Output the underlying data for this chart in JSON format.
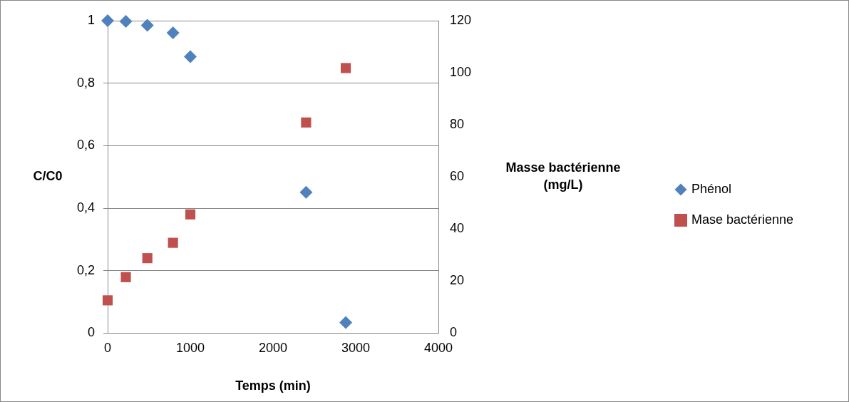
{
  "chart_data": {
    "type": "scatter",
    "xlabel": "Temps (min)",
    "ylabel": "C/C0",
    "y2label": "Masse bactérienne (mg/L)",
    "xlim": [
      0,
      4000
    ],
    "xticks": [
      0,
      1000,
      2000,
      3000,
      4000
    ],
    "ylim": [
      0,
      1
    ],
    "yticks": [
      0,
      {
        "value": 0.2,
        "label": "0,2"
      },
      {
        "value": 0.4,
        "label": "0,4"
      },
      {
        "value": 0.6,
        "label": "0,6"
      },
      {
        "value": 0.8,
        "label": "0,8"
      },
      1
    ],
    "y2lim": [
      0,
      120
    ],
    "y2ticks": [
      0,
      20,
      40,
      60,
      80,
      100,
      120
    ],
    "grid": "y",
    "legend": "right",
    "series": [
      {
        "name": "Phénol",
        "color": "#4f81bd",
        "marker": "diamond",
        "x": [
          0,
          220,
          480,
          790,
          1000,
          2400,
          2880
        ],
        "values": [
          1,
          0.998,
          0.985,
          0.961,
          0.885,
          0.451,
          0.034
        ]
      },
      {
        "name": "Mase bactérienne",
        "color": "#c0504d",
        "marker": "square",
        "axis": "y2",
        "x": [
          0,
          220,
          480,
          790,
          1000,
          2400,
          2880
        ],
        "values": [
          12.6,
          21.5,
          28.8,
          34.7,
          45.6,
          80.9,
          101.8
        ]
      }
    ]
  }
}
